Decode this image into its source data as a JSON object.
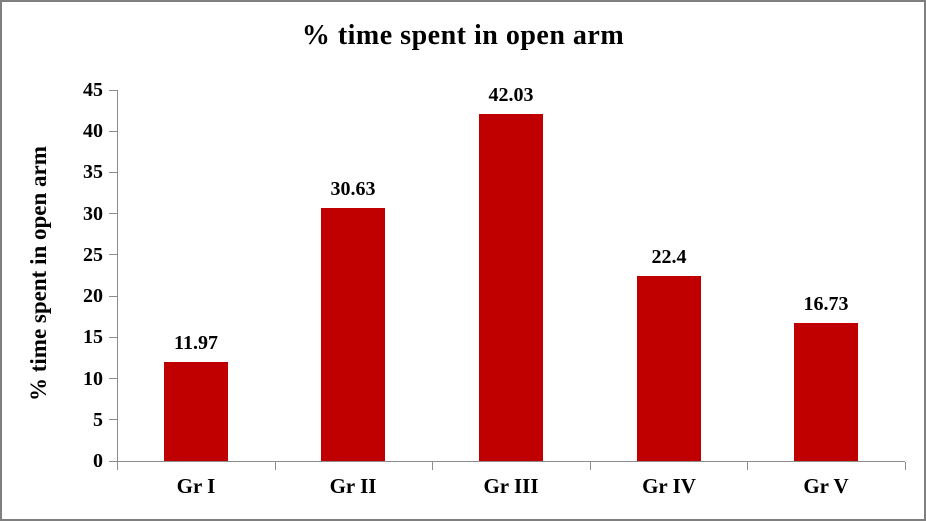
{
  "chart_data": {
    "type": "bar",
    "title": "% time spent in open arm",
    "xlabel": "",
    "ylabel": "% time spent in open arm",
    "categories": [
      "Gr I",
      "Gr II",
      "Gr III",
      "Gr IV",
      "Gr V"
    ],
    "values": [
      11.97,
      30.63,
      42.03,
      22.4,
      16.73
    ],
    "data_labels": [
      "11.97",
      "30.63",
      "42.03",
      "22.4",
      "16.73"
    ],
    "ylim": [
      0,
      45
    ],
    "y_ticks": [
      0,
      5,
      10,
      15,
      20,
      25,
      30,
      35,
      40,
      45
    ],
    "grid": false,
    "legend": "none",
    "colors": {
      "bar": "#C00000",
      "axis": "#8C8C8C",
      "text": "#000000",
      "frame_border": "#7F7F7F"
    }
  }
}
